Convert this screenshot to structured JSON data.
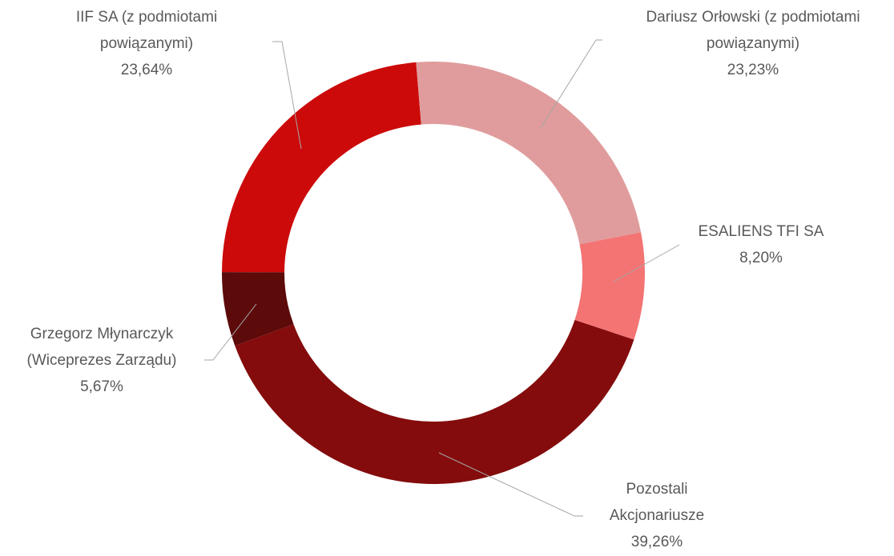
{
  "chart_data": {
    "type": "donut",
    "categories": [
      "Dariusz Orłowski (z podmiotami powiązanymi)",
      "ESALIENS TFI SA",
      "Pozostali Akcjonariusze",
      "Grzegorz Młynarczyk (Wiceprezes Zarządu)",
      "IIF SA (z podmiotami powiązanymi)"
    ],
    "values": [
      23.23,
      8.2,
      39.26,
      5.67,
      23.64
    ],
    "value_labels": [
      "23,23%",
      "8,20%",
      "39,26%",
      "5,67%",
      "23,64%"
    ],
    "colors": [
      "#e09c9c",
      "#f47474",
      "#840c0c",
      "#5c0a0a",
      "#cc0a0a"
    ]
  }
}
